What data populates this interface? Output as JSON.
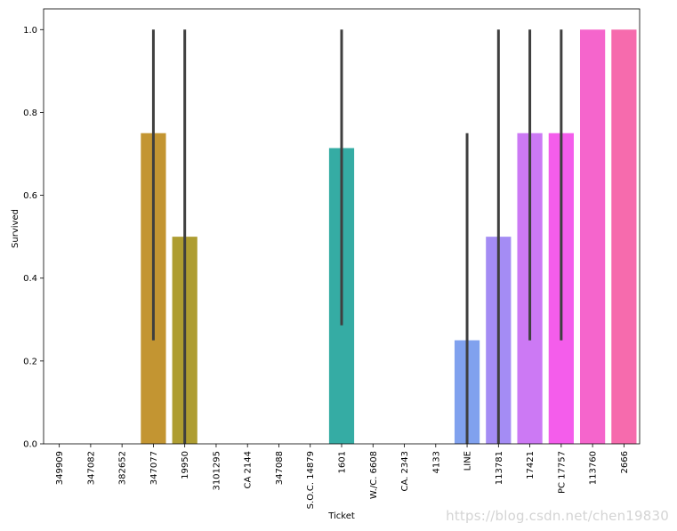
{
  "chart_data": {
    "type": "bar",
    "title": "",
    "xlabel": "Ticket",
    "ylabel": "Survived",
    "ylim": [
      0,
      1.05
    ],
    "yticks": [
      0.0,
      0.2,
      0.4,
      0.6,
      0.8,
      1.0
    ],
    "ytick_labels": [
      "0.0",
      "0.2",
      "0.4",
      "0.6",
      "0.8",
      "1.0"
    ],
    "grid": false,
    "legend": "none",
    "categories": [
      "349909",
      "347082",
      "382652",
      "347077",
      "19950",
      "3101295",
      "CA 2144",
      "347088",
      "S.O.C. 14879",
      "1601",
      "W./C. 6608",
      "CA. 2343",
      "4133",
      "LINE",
      "113781",
      "17421",
      "PC 17757",
      "113760",
      "2666"
    ],
    "values": [
      0,
      0,
      0,
      0.75,
      0.5,
      0,
      0,
      0,
      0,
      0.714,
      0,
      0,
      0,
      0.25,
      0.5,
      0.75,
      0.75,
      1.0,
      1.0
    ],
    "error_bars": [
      null,
      null,
      null,
      [
        0.25,
        1.0
      ],
      [
        0.0,
        1.0
      ],
      null,
      null,
      null,
      null,
      [
        0.286,
        1.0
      ],
      null,
      null,
      null,
      [
        0.0,
        0.75
      ],
      [
        0.0,
        1.0
      ],
      [
        0.25,
        1.0
      ],
      [
        0.25,
        1.0
      ],
      null,
      null
    ],
    "colors": [
      "#f77189",
      "#f47658",
      "#dc8932",
      "#c39532",
      "#ae9d31",
      "#97a431",
      "#77ab31",
      "#33b07a",
      "#34ae91",
      "#35aca4",
      "#36abb5",
      "#38a9c5",
      "#3ba3ec",
      "#80a1ee",
      "#a48cf4",
      "#cc79f4",
      "#f45deb",
      "#f565cc",
      "#f66bad"
    ]
  },
  "watermark": "https://blog.csdn.net/chen19830"
}
